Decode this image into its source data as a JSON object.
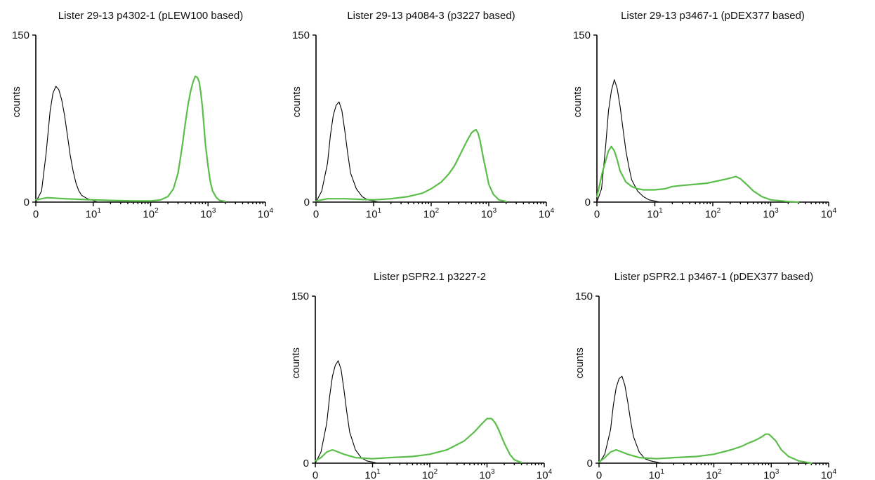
{
  "chart_data": [
    {
      "type": "line",
      "title": "Lister 29-13 p4302-1 (pLEW100 based)",
      "ylabel": "counts",
      "xlabel": "",
      "x_scale": "biexponential (0 then log10)",
      "xlim": [
        0,
        10000
      ],
      "ylim": [
        0,
        150
      ],
      "x_ticks": [
        {
          "value": 0,
          "base": "0",
          "exp": ""
        },
        {
          "value": 10,
          "base": "10",
          "exp": "1"
        },
        {
          "value": 100,
          "base": "10",
          "exp": "2"
        },
        {
          "value": 1000,
          "base": "10",
          "exp": "3"
        },
        {
          "value": 10000,
          "base": "10",
          "exp": "4"
        }
      ],
      "y_ticks": [
        {
          "value": 0,
          "label": "0"
        },
        {
          "value": 150,
          "label": "150"
        }
      ],
      "grid": false,
      "series": [
        {
          "color": "#000000",
          "x": [
            0,
            1,
            1.8,
            2.5,
            3,
            3.5,
            4,
            4.5,
            5,
            5.5,
            6,
            6.5,
            7,
            7.5,
            8,
            9,
            10,
            11,
            12
          ],
          "y": [
            0,
            10,
            44,
            82,
            98,
            104,
            101,
            92,
            78,
            60,
            42,
            28,
            17,
            10,
            6,
            3,
            1.5,
            0.5,
            0
          ]
        },
        {
          "color": "#5bbd4a",
          "x": [
            0,
            2,
            5,
            10,
            20,
            50,
            100,
            150,
            200,
            250,
            300,
            350,
            400,
            450,
            500,
            550,
            600,
            650,
            700,
            750,
            800,
            850,
            900,
            1000,
            1100,
            1200,
            1400,
            1600,
            2000
          ],
          "y": [
            2,
            4,
            3,
            2,
            1.5,
            1,
            1,
            2,
            5,
            12,
            26,
            48,
            70,
            88,
            100,
            108,
            113,
            112,
            108,
            98,
            85,
            68,
            52,
            32,
            18,
            10,
            4,
            1.5,
            0.5
          ]
        }
      ]
    },
    {
      "type": "line",
      "title": "Lister 29-13 p4084-3 (p3227 based)",
      "ylabel": "counts",
      "xlabel": "",
      "x_scale": "biexponential (0 then log10)",
      "xlim": [
        0,
        10000
      ],
      "ylim": [
        0,
        150
      ],
      "x_ticks": [
        {
          "value": 0,
          "base": "0",
          "exp": ""
        },
        {
          "value": 10,
          "base": "10",
          "exp": "1"
        },
        {
          "value": 100,
          "base": "10",
          "exp": "2"
        },
        {
          "value": 1000,
          "base": "10",
          "exp": "3"
        },
        {
          "value": 10000,
          "base": "10",
          "exp": "4"
        }
      ],
      "y_ticks": [
        {
          "value": 0,
          "label": "0"
        },
        {
          "value": 150,
          "label": "150"
        }
      ],
      "grid": false,
      "series": [
        {
          "color": "#000000",
          "x": [
            0,
            1,
            2,
            2.5,
            3,
            3.5,
            4,
            4.5,
            5,
            5.5,
            6,
            7,
            8,
            9,
            10,
            12
          ],
          "y": [
            0,
            10,
            35,
            60,
            78,
            87,
            90,
            82,
            64,
            44,
            26,
            12,
            5,
            2,
            1,
            0
          ]
        },
        {
          "color": "#5bbd4a",
          "x": [
            0,
            2,
            5,
            10,
            20,
            40,
            70,
            100,
            150,
            200,
            250,
            300,
            350,
            400,
            450,
            500,
            550,
            600,
            650,
            700,
            750,
            800,
            900,
            1000,
            1200,
            1500,
            2000
          ],
          "y": [
            1,
            3,
            3,
            2,
            3,
            5,
            8,
            12,
            18,
            25,
            32,
            40,
            47,
            53,
            58,
            62,
            64,
            65,
            62,
            56,
            48,
            40,
            28,
            16,
            7,
            2,
            0.5
          ]
        }
      ]
    },
    {
      "type": "line",
      "title": "Lister 29-13 p3467-1 (pDEX377 based)",
      "ylabel": "counts",
      "xlabel": "",
      "x_scale": "biexponential (0 then log10)",
      "xlim": [
        0,
        10000
      ],
      "ylim": [
        0,
        150
      ],
      "x_ticks": [
        {
          "value": 0,
          "base": "0",
          "exp": ""
        },
        {
          "value": 10,
          "base": "10",
          "exp": "1"
        },
        {
          "value": 100,
          "base": "10",
          "exp": "2"
        },
        {
          "value": 1000,
          "base": "10",
          "exp": "3"
        },
        {
          "value": 10000,
          "base": "10",
          "exp": "4"
        }
      ],
      "y_ticks": [
        {
          "value": 0,
          "label": "0"
        },
        {
          "value": 150,
          "label": "150"
        }
      ],
      "grid": false,
      "series": [
        {
          "color": "#000000",
          "x": [
            0,
            0.8,
            1.5,
            2,
            2.5,
            3,
            3.5,
            4,
            4.5,
            5,
            5.5,
            6,
            7,
            8,
            9,
            10,
            12
          ],
          "y": [
            0,
            12,
            50,
            82,
            100,
            110,
            102,
            86,
            66,
            46,
            32,
            20,
            10,
            5,
            2,
            1,
            0
          ]
        },
        {
          "color": "#5bbd4a",
          "x": [
            0,
            1,
            2,
            2.5,
            3,
            3.5,
            4,
            5,
            6,
            7,
            8,
            10,
            15,
            20,
            30,
            50,
            80,
            120,
            180,
            250,
            300,
            400,
            500,
            700,
            1000,
            2000,
            3000
          ],
          "y": [
            5,
            28,
            46,
            50,
            46,
            38,
            28,
            18,
            14,
            12,
            11,
            11,
            12,
            14,
            15,
            16,
            17,
            19,
            21,
            23,
            21,
            15,
            10,
            5,
            2,
            0.5,
            0
          ]
        }
      ]
    },
    {
      "type": "line",
      "title": "Lister pSPR2.1 p3227-2",
      "ylabel": "counts",
      "xlabel": "",
      "x_scale": "biexponential (0 then log10)",
      "xlim": [
        0,
        10000
      ],
      "ylim": [
        0,
        150
      ],
      "x_ticks": [
        {
          "value": 0,
          "base": "0",
          "exp": ""
        },
        {
          "value": 10,
          "base": "10",
          "exp": "1"
        },
        {
          "value": 100,
          "base": "10",
          "exp": "2"
        },
        {
          "value": 1000,
          "base": "10",
          "exp": "3"
        },
        {
          "value": 10000,
          "base": "10",
          "exp": "4"
        }
      ],
      "y_ticks": [
        {
          "value": 0,
          "label": "0"
        },
        {
          "value": 150,
          "label": "150"
        }
      ],
      "grid": false,
      "series": [
        {
          "color": "#000000",
          "x": [
            0,
            1,
            2,
            2.5,
            3,
            3.5,
            4,
            4.5,
            5,
            5.5,
            6,
            7,
            8,
            9,
            10,
            12
          ],
          "y": [
            0,
            10,
            36,
            60,
            78,
            88,
            92,
            84,
            66,
            46,
            28,
            12,
            5,
            2,
            1,
            0
          ]
        },
        {
          "color": "#5bbd4a",
          "x": [
            0,
            1,
            2,
            3,
            4,
            5,
            7,
            10,
            20,
            50,
            100,
            200,
            400,
            600,
            800,
            1000,
            1200,
            1400,
            1600,
            2000,
            2500,
            3000,
            4000
          ],
          "y": [
            2,
            5,
            10,
            12,
            10,
            8,
            5,
            4,
            5,
            6,
            8,
            12,
            20,
            28,
            35,
            40,
            40,
            36,
            30,
            18,
            8,
            3,
            0.5
          ]
        }
      ]
    },
    {
      "type": "line",
      "title": "Lister pSPR2.1 p3467-1 (pDEX377 based)",
      "ylabel": "counts",
      "xlabel": "",
      "x_scale": "biexponential (0 then log10)",
      "xlim": [
        0,
        10000
      ],
      "ylim": [
        0,
        150
      ],
      "x_ticks": [
        {
          "value": 0,
          "base": "0",
          "exp": ""
        },
        {
          "value": 10,
          "base": "10",
          "exp": "1"
        },
        {
          "value": 100,
          "base": "10",
          "exp": "2"
        },
        {
          "value": 1000,
          "base": "10",
          "exp": "3"
        },
        {
          "value": 10000,
          "base": "10",
          "exp": "4"
        }
      ],
      "y_ticks": [
        {
          "value": 0,
          "label": "0"
        },
        {
          "value": 150,
          "label": "150"
        }
      ],
      "grid": false,
      "series": [
        {
          "color": "#000000",
          "x": [
            0,
            1,
            2,
            2.5,
            3,
            3.5,
            4,
            4.5,
            5,
            5.5,
            6,
            7,
            8,
            9,
            10,
            12
          ],
          "y": [
            0,
            8,
            30,
            52,
            68,
            76,
            78,
            70,
            55,
            38,
            24,
            10,
            4,
            2,
            1,
            0
          ]
        },
        {
          "color": "#5bbd4a",
          "x": [
            0,
            1,
            2,
            3,
            4,
            5,
            7,
            10,
            20,
            50,
            100,
            200,
            300,
            400,
            500,
            600,
            700,
            800,
            900,
            1000,
            1200,
            1500,
            2000,
            3000,
            5000
          ],
          "y": [
            1,
            5,
            10,
            12,
            10,
            8,
            5,
            4,
            5,
            6,
            8,
            12,
            15,
            18,
            20,
            22,
            24,
            26,
            26,
            24,
            20,
            12,
            6,
            2,
            0
          ]
        }
      ]
    }
  ]
}
